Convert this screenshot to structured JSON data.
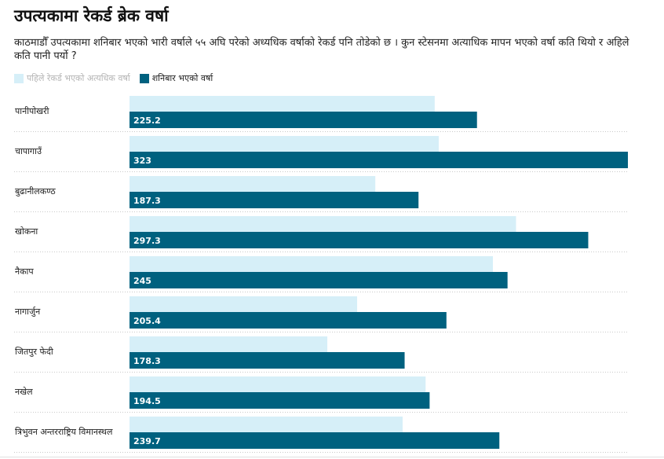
{
  "chart_data": {
    "type": "bar",
    "orientation": "horizontal",
    "title": "उपत्यकामा रेकर्ड ब्रेक वर्षा",
    "subtitle": "काठमाडौँ उपत्यकामा शनिबार भएको भारी वर्षाले ५५ अघि परेको अध्यधिक वर्षाको रेकर्ड पनि तोडेको छ । कुन स्टेसनमा अत्याधिक मापन भएको वर्षा कति थियो र अहिले कति पानी पर्यो ?",
    "legend_position": "top-left",
    "grid": false,
    "xlim": [
      0,
      323
    ],
    "categories": [
      "पानीपोखरी",
      "चापागाउँ",
      "बुढानीलकण्ठ",
      "खोकना",
      "नैकाप",
      "नागार्जुन",
      "जितपुर फेदी",
      "नखेल",
      "त्रिभुवन अन्तरराष्ट्रिय विमानस्थल"
    ],
    "series": [
      {
        "name": "पहिले रेकर्ड भएको अत्यधिक वर्षा",
        "color": "#d6eff8",
        "values": [
          197.8,
          200.4,
          159.3,
          250.5,
          235.5,
          147.5,
          128.2,
          191.9,
          177.0
        ]
      },
      {
        "name": "शनिबार भएको वर्षा",
        "color": "#00617f",
        "values": [
          225.2,
          323,
          187.3,
          297.3,
          245,
          205.4,
          178.3,
          194.5,
          239.7
        ],
        "labels": [
          "225.2",
          "323",
          "187.3",
          "297.3",
          "245",
          "205.4",
          "178.3",
          "194.5",
          "239.7"
        ]
      }
    ]
  }
}
